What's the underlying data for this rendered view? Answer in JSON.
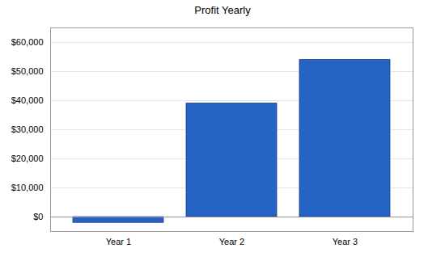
{
  "chart_data": {
    "type": "bar",
    "title": "Profit Yearly",
    "categories": [
      "Year 1",
      "Year 2",
      "Year 3"
    ],
    "values": [
      -2000,
      39000,
      54000
    ],
    "color": "#2563c4",
    "ylim": [
      -5000,
      65000
    ],
    "yticks": [
      {
        "value": 0,
        "label": "$0"
      },
      {
        "value": 10000,
        "label": "$10,000"
      },
      {
        "value": 20000,
        "label": "$20,000"
      },
      {
        "value": 30000,
        "label": "$30,000"
      },
      {
        "value": 40000,
        "label": "$40,000"
      },
      {
        "value": 50000,
        "label": "$50,000"
      },
      {
        "value": 60000,
        "label": "$60,000"
      }
    ],
    "grid": true
  }
}
